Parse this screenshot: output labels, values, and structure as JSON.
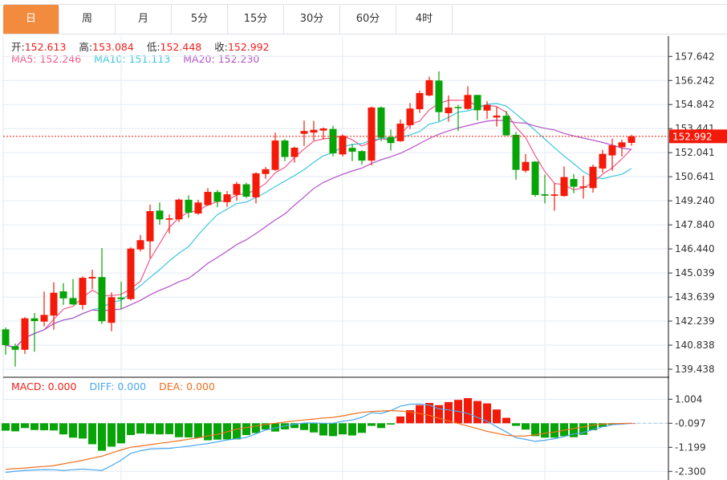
{
  "tabs": [
    {
      "label": "日",
      "active": true
    },
    {
      "label": "周"
    },
    {
      "label": "月"
    },
    {
      "label": "5分"
    },
    {
      "label": "15分"
    },
    {
      "label": "30分"
    },
    {
      "label": "60分"
    },
    {
      "label": "4时"
    }
  ],
  "ohlc_info": {
    "open_label": "开:",
    "open": "152.613",
    "high_label": "高:",
    "high": "153.084",
    "low_label": "低:",
    "low": "152.448",
    "close_label": "收:",
    "close": "152.992"
  },
  "ma_info": {
    "ma5": "MA5: 152.246",
    "ma10": "MA10: 151.113",
    "ma20": "MA20: 152.230"
  },
  "macd_info": {
    "macd": "MACD: 0.000",
    "diff": "DIFF: 0.000",
    "dea": "DEA: 0.000"
  },
  "colors": {
    "up": "#f31a0a",
    "down": "#07a407",
    "ma5": "#f0588a",
    "ma10": "#3ec6de",
    "ma20": "#b352c8",
    "diff": "#4aa8f0",
    "dea": "#f0701e",
    "tab_active": "#f38b3f",
    "grid": "#e3ebf2"
  },
  "chart_data": [
    {
      "type": "candlestick",
      "y_ticks": [
        "157.642",
        "156.242",
        "154.842",
        "153.441",
        "152.041",
        "150.641",
        "149.240",
        "147.840",
        "146.440",
        "145.039",
        "143.639",
        "142.239",
        "140.838",
        "139.438"
      ],
      "ylim": [
        139.438,
        157.642
      ],
      "last_price": "152.992",
      "ma_periods": [
        5,
        10,
        20
      ],
      "candles_ohlc": [
        [
          141.76,
          141.87,
          140.29,
          140.84
        ],
        [
          140.78,
          140.93,
          139.59,
          140.57
        ],
        [
          140.57,
          142.48,
          140.33,
          142.4
        ],
        [
          142.4,
          142.71,
          140.45,
          142.24
        ],
        [
          142.21,
          143.96,
          141.93,
          142.6
        ],
        [
          142.56,
          144.5,
          141.74,
          143.89
        ],
        [
          143.97,
          144.45,
          143.18,
          143.56
        ],
        [
          143.58,
          144.69,
          143.18,
          143.21
        ],
        [
          143.18,
          144.84,
          142.91,
          144.76
        ],
        [
          144.72,
          145.23,
          144.11,
          144.81
        ],
        [
          144.8,
          146.49,
          142.07,
          142.23
        ],
        [
          142.14,
          143.91,
          141.65,
          143.63
        ],
        [
          143.61,
          144.53,
          142.94,
          143.52
        ],
        [
          143.52,
          146.53,
          143.44,
          146.46
        ],
        [
          146.41,
          147.25,
          146.29,
          146.95
        ],
        [
          146.88,
          149.02,
          145.9,
          148.64
        ],
        [
          148.67,
          149.14,
          147.85,
          148.16
        ],
        [
          148.14,
          148.44,
          147.35,
          148.22
        ],
        [
          148.16,
          149.37,
          148.0,
          149.31
        ],
        [
          149.3,
          149.56,
          148.25,
          148.55
        ],
        [
          148.5,
          149.3,
          148.42,
          149.14
        ],
        [
          148.99,
          149.98,
          148.94,
          149.76
        ],
        [
          149.75,
          149.87,
          148.87,
          149.19
        ],
        [
          149.16,
          149.81,
          148.88,
          149.62
        ],
        [
          149.59,
          150.34,
          149.25,
          150.22
        ],
        [
          150.2,
          150.29,
          149.4,
          149.48
        ],
        [
          149.44,
          150.9,
          149.09,
          150.84
        ],
        [
          150.8,
          151.21,
          150.52,
          151.08
        ],
        [
          151.04,
          153.21,
          150.99,
          152.75
        ],
        [
          152.75,
          152.83,
          151.55,
          151.79
        ],
        [
          151.79,
          152.39,
          151.46,
          152.33
        ],
        [
          153.14,
          153.91,
          152.44,
          153.3
        ],
        [
          153.21,
          153.89,
          152.75,
          153.37
        ],
        [
          153.33,
          153.51,
          152.8,
          153.45
        ],
        [
          153.42,
          153.61,
          151.82,
          152.0
        ],
        [
          151.94,
          153.11,
          151.82,
          153.02
        ],
        [
          152.32,
          152.55,
          151.55,
          152.1
        ],
        [
          152.13,
          152.18,
          151.35,
          151.58
        ],
        [
          151.58,
          154.73,
          151.3,
          154.67
        ],
        [
          154.67,
          154.73,
          152.71,
          152.91
        ],
        [
          152.95,
          153.39,
          152.16,
          152.6
        ],
        [
          152.71,
          153.97,
          152.67,
          153.73
        ],
        [
          153.64,
          154.93,
          153.42,
          154.61
        ],
        [
          154.57,
          155.65,
          154.35,
          155.51
        ],
        [
          155.37,
          156.46,
          155.32,
          156.26
        ],
        [
          156.24,
          156.77,
          153.87,
          154.4
        ],
        [
          154.34,
          155.37,
          153.84,
          154.67
        ],
        [
          154.7,
          154.82,
          153.3,
          154.65
        ],
        [
          154.59,
          155.91,
          154.54,
          155.4
        ],
        [
          155.4,
          155.41,
          153.92,
          154.51
        ],
        [
          154.49,
          155.04,
          154.0,
          154.82
        ],
        [
          154.09,
          154.73,
          153.56,
          154.2
        ],
        [
          154.19,
          154.47,
          153.02,
          153.05
        ],
        [
          153.08,
          153.25,
          150.46,
          151.04
        ],
        [
          150.99,
          151.96,
          150.88,
          151.5
        ],
        [
          151.52,
          151.55,
          149.48,
          149.58
        ],
        [
          149.62,
          150.76,
          149.09,
          149.54
        ],
        [
          149.53,
          150.26,
          148.66,
          149.61
        ],
        [
          149.52,
          151.24,
          149.48,
          150.62
        ],
        [
          150.51,
          150.8,
          149.68,
          150.06
        ],
        [
          150.0,
          150.7,
          149.37,
          150.08
        ],
        [
          149.98,
          151.35,
          149.72,
          151.22
        ],
        [
          151.12,
          152.21,
          150.88,
          151.97
        ],
        [
          151.88,
          152.86,
          150.99,
          152.47
        ],
        [
          152.36,
          152.8,
          151.82,
          152.64
        ],
        [
          152.613,
          153.084,
          152.448,
          152.992
        ]
      ]
    },
    {
      "type": "macd",
      "y_ticks": [
        "1.004",
        "-0.097",
        "-1.199",
        "-2.300"
      ],
      "ylim": [
        -2.3,
        1.004
      ],
      "macd": [
        -0.34,
        -0.37,
        -0.22,
        -0.31,
        -0.32,
        -0.33,
        -0.51,
        -0.66,
        -0.7,
        -0.96,
        -1.26,
        -1.07,
        -0.92,
        -0.54,
        -0.47,
        -0.49,
        -0.51,
        -0.5,
        -0.64,
        -0.65,
        -0.67,
        -0.78,
        -0.75,
        -0.74,
        -0.74,
        -0.54,
        -0.45,
        -0.29,
        -0.38,
        -0.28,
        -0.22,
        -0.31,
        -0.42,
        -0.56,
        -0.59,
        -0.51,
        -0.56,
        -0.44,
        -0.12,
        -0.22,
        -0.06,
        0.31,
        0.6,
        0.83,
        0.93,
        0.83,
        0.97,
        1.07,
        1.15,
        1.02,
        0.91,
        0.63,
        0.25,
        -0.12,
        -0.29,
        -0.59,
        -0.66,
        -0.66,
        -0.59,
        -0.64,
        -0.53,
        -0.32,
        -0.17,
        -0.07,
        -0.02,
        0.0
      ],
      "diff": [
        -2.25,
        -2.2,
        -2.16,
        -2.14,
        -2.12,
        -2.13,
        -2.16,
        -2.13,
        -2.1,
        -2.13,
        -2.16,
        -1.94,
        -1.69,
        -1.38,
        -1.26,
        -1.18,
        -1.16,
        -1.15,
        -1.1,
        -1.05,
        -0.99,
        -0.93,
        -0.85,
        -0.77,
        -0.71,
        -0.65,
        -0.48,
        -0.31,
        -0.22,
        -0.12,
        -0.05,
        0.01,
        0.01,
        0.0,
        0.0,
        0.09,
        0.15,
        0.27,
        0.48,
        0.45,
        0.58,
        0.78,
        0.87,
        0.88,
        0.83,
        0.66,
        0.61,
        0.54,
        0.45,
        0.27,
        0.09,
        -0.16,
        -0.4,
        -0.66,
        -0.74,
        -0.83,
        -0.78,
        -0.71,
        -0.61,
        -0.49,
        -0.43,
        -0.29,
        -0.16,
        -0.07,
        -0.04,
        0.0
      ],
      "dea": [
        -2.11,
        -2.08,
        -2.05,
        -2.01,
        -1.98,
        -1.94,
        -1.86,
        -1.78,
        -1.7,
        -1.6,
        -1.51,
        -1.36,
        -1.22,
        -1.1,
        -1.04,
        -0.98,
        -0.92,
        -0.86,
        -0.8,
        -0.73,
        -0.67,
        -0.58,
        -0.51,
        -0.39,
        -0.27,
        -0.2,
        -0.13,
        -0.05,
        0.0,
        0.05,
        0.11,
        0.15,
        0.19,
        0.24,
        0.27,
        0.34,
        0.42,
        0.5,
        0.54,
        0.56,
        0.58,
        0.56,
        0.52,
        0.44,
        0.36,
        0.23,
        0.1,
        -0.01,
        -0.13,
        -0.25,
        -0.37,
        -0.46,
        -0.55,
        -0.59,
        -0.58,
        -0.53,
        -0.46,
        -0.4,
        -0.32,
        -0.24,
        -0.17,
        -0.09,
        -0.04,
        -0.02,
        -0.01,
        0.0
      ]
    }
  ]
}
